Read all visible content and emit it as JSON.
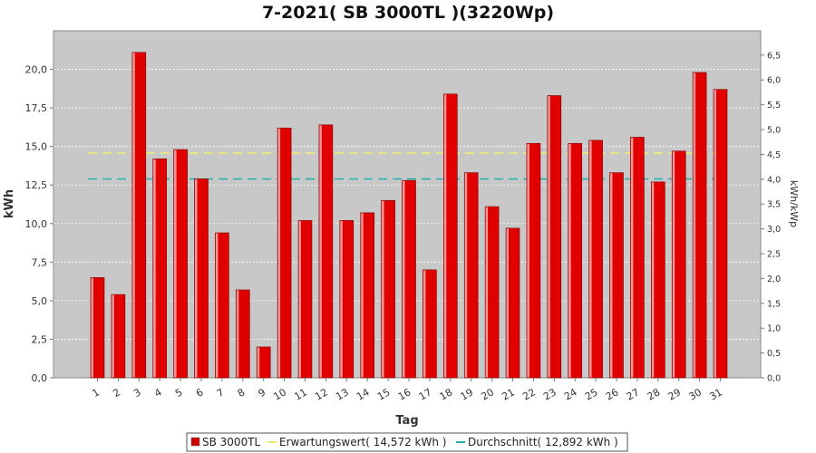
{
  "chart_data": {
    "type": "bar",
    "title": "7-2021( SB 3000TL )(3220Wp)",
    "xlabel": "Tag",
    "ylabel": "kWh",
    "ylabel_right": "kWh/kWp",
    "ylim": [
      0,
      22.5
    ],
    "ylim_right": [
      0,
      6.99
    ],
    "yticks": [
      "0,0",
      "2,5",
      "5,0",
      "7,5",
      "10,0",
      "12,5",
      "15,0",
      "17,5",
      "20,0"
    ],
    "yticks_right": [
      "0,0",
      "0,5",
      "1,0",
      "1,5",
      "2,0",
      "2,5",
      "3,0",
      "3,5",
      "4,0",
      "4,5",
      "5,0",
      "5,5",
      "6,0",
      "6,5"
    ],
    "categories": [
      "1",
      "2",
      "3",
      "4",
      "5",
      "6",
      "7",
      "8",
      "9",
      "10",
      "11",
      "12",
      "13",
      "14",
      "15",
      "16",
      "17",
      "18",
      "19",
      "20",
      "21",
      "22",
      "23",
      "24",
      "25",
      "26",
      "27",
      "28",
      "29",
      "30",
      "31"
    ],
    "series": [
      {
        "name": "SB 3000TL",
        "color": "#e00000",
        "values": [
          6.5,
          5.4,
          21.1,
          14.2,
          14.8,
          12.9,
          9.4,
          5.7,
          2.0,
          16.2,
          10.2,
          16.4,
          10.2,
          10.7,
          11.5,
          12.8,
          7.0,
          18.4,
          13.3,
          11.1,
          9.7,
          15.2,
          18.3,
          15.2,
          15.4,
          13.3,
          15.6,
          12.7,
          14.7,
          19.8,
          18.7
        ]
      }
    ],
    "reference_lines": [
      {
        "name": "Erwartungswert",
        "value": 14.572,
        "color": "#f0f070"
      },
      {
        "name": "Durchschnitt",
        "value": 12.892,
        "color": "#20b0b0"
      }
    ],
    "grid": true,
    "legend_position": "bottom"
  },
  "legend": {
    "items": [
      {
        "label": "SB 3000TL",
        "color": "#d00000"
      },
      {
        "label": "Erwartungswert( 14,572 kWh )",
        "color": "#e8e870"
      },
      {
        "label": "Durchschnitt( 12,892 kWh )",
        "color": "#20b0b0"
      }
    ]
  }
}
